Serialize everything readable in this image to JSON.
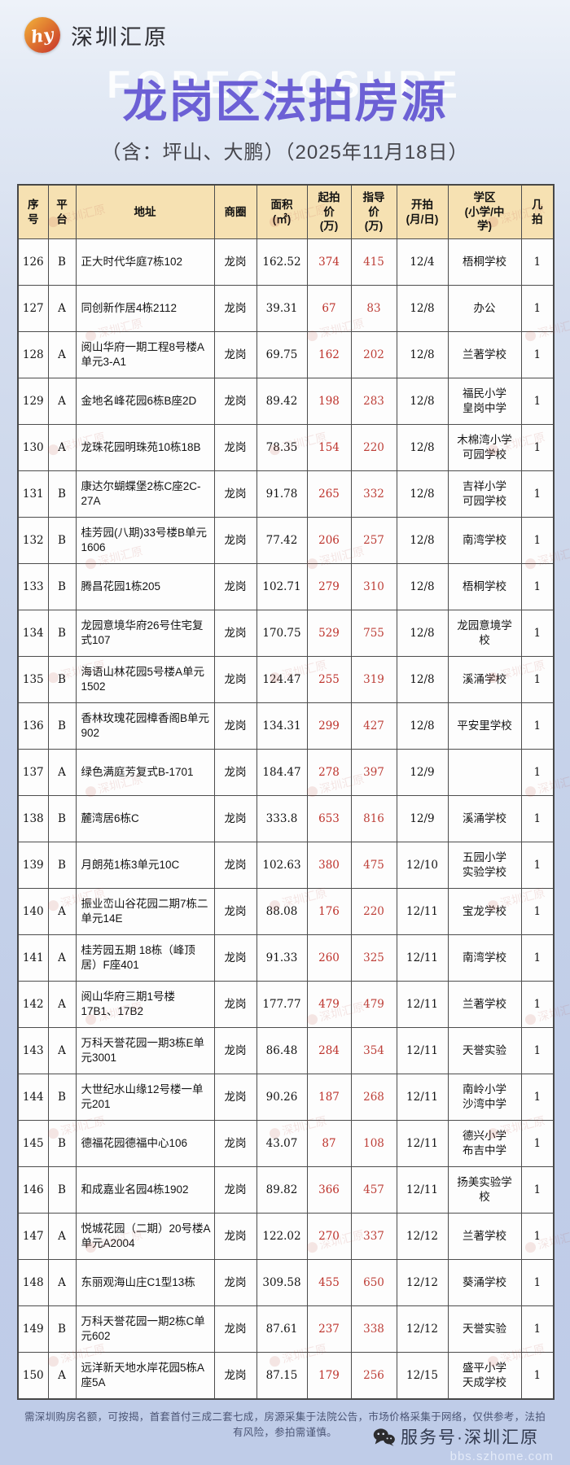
{
  "brand": {
    "logo_text": "hy",
    "name": "深圳汇原"
  },
  "header": {
    "watermark_en": "FORECLOSURE",
    "title": "龙岗区法拍房源",
    "subtitle": "（含：坪山、大鹏）（2025年11月18日）"
  },
  "colors": {
    "title_purple": "#6c60d5",
    "table_header_bg": "#f6e1b2",
    "start_price_red": "#bd322b",
    "guide_price_red": "#bd3f38",
    "page_bg_blue": "#c4d1e9"
  },
  "watermark": {
    "text": "深圳汇原"
  },
  "table": {
    "headers": [
      "序\n号",
      "平\n台",
      "地址",
      "商圈",
      "面积\n(㎡)",
      "起拍\n价\n(万)",
      "指导\n价\n(万)",
      "开拍\n(月/日)",
      "学区\n(小学/中\n学)",
      "几\n拍"
    ],
    "rows": [
      {
        "no": "126",
        "platform": "B",
        "address": "正大时代华庭7栋102",
        "district": "龙岗",
        "area": "162.52",
        "start_price": "374",
        "guide_price": "415",
        "date": "12/4",
        "school": "梧桐学校",
        "round": "1"
      },
      {
        "no": "127",
        "platform": "A",
        "address": "同创新作居4栋2112",
        "district": "龙岗",
        "area": "39.31",
        "start_price": "67",
        "guide_price": "83",
        "date": "12/8",
        "school": "办公",
        "round": "1"
      },
      {
        "no": "128",
        "platform": "A",
        "address": "阅山华府一期工程8号楼A单元3-A1",
        "district": "龙岗",
        "area": "69.75",
        "start_price": "162",
        "guide_price": "202",
        "date": "12/8",
        "school": "兰著学校",
        "round": "1"
      },
      {
        "no": "129",
        "platform": "A",
        "address": "金地名峰花园6栋B座2D",
        "district": "龙岗",
        "area": "89.42",
        "start_price": "198",
        "guide_price": "283",
        "date": "12/8",
        "school": "福民小学\n皇岗中学",
        "round": "1"
      },
      {
        "no": "130",
        "platform": "A",
        "address": "龙珠花园明珠苑10栋18B",
        "district": "龙岗",
        "area": "78.35",
        "start_price": "154",
        "guide_price": "220",
        "date": "12/8",
        "school": "木棉湾小学\n可园学校",
        "round": "1"
      },
      {
        "no": "131",
        "platform": "B",
        "address": "康达尔蝴蝶堡2栋C座2C-27A",
        "district": "龙岗",
        "area": "91.78",
        "start_price": "265",
        "guide_price": "332",
        "date": "12/8",
        "school": "吉祥小学\n可园学校",
        "round": "1"
      },
      {
        "no": "132",
        "platform": "B",
        "address": "桂芳园(八期)33号楼B单元1606",
        "district": "龙岗",
        "area": "77.42",
        "start_price": "206",
        "guide_price": "257",
        "date": "12/8",
        "school": "南湾学校",
        "round": "1"
      },
      {
        "no": "133",
        "platform": "B",
        "address": "腾昌花园1栋205",
        "district": "龙岗",
        "area": "102.71",
        "start_price": "279",
        "guide_price": "310",
        "date": "12/8",
        "school": "梧桐学校",
        "round": "1"
      },
      {
        "no": "134",
        "platform": "B",
        "address": "龙园意境华府26号住宅复式107",
        "district": "龙岗",
        "area": "170.75",
        "start_price": "529",
        "guide_price": "755",
        "date": "12/8",
        "school": "龙园意境学校",
        "round": "1"
      },
      {
        "no": "135",
        "platform": "B",
        "address": "海语山林花园5号楼A单元1502",
        "district": "龙岗",
        "area": "124.47",
        "start_price": "255",
        "guide_price": "319",
        "date": "12/8",
        "school": "溪涌学校",
        "round": "1"
      },
      {
        "no": "136",
        "platform": "B",
        "address": "香林玫瑰花园樟香阁B单元902",
        "district": "龙岗",
        "area": "134.31",
        "start_price": "299",
        "guide_price": "427",
        "date": "12/8",
        "school": "平安里学校",
        "round": "1"
      },
      {
        "no": "137",
        "platform": "A",
        "address": "绿色满庭芳复式B-1701",
        "district": "龙岗",
        "area": "184.47",
        "start_price": "278",
        "guide_price": "397",
        "date": "12/9",
        "school": "",
        "round": "1"
      },
      {
        "no": "138",
        "platform": "B",
        "address": "麓湾居6栋C",
        "district": "龙岗",
        "area": "333.8",
        "start_price": "653",
        "guide_price": "816",
        "date": "12/9",
        "school": "溪涌学校",
        "round": "1"
      },
      {
        "no": "139",
        "platform": "B",
        "address": "月朗苑1栋3单元10C",
        "district": "龙岗",
        "area": "102.63",
        "start_price": "380",
        "guide_price": "475",
        "date": "12/10",
        "school": "五园小学\n实验学校",
        "round": "1"
      },
      {
        "no": "140",
        "platform": "A",
        "address": "振业峦山谷花园二期7栋二单元14E",
        "district": "龙岗",
        "area": "88.08",
        "start_price": "176",
        "guide_price": "220",
        "date": "12/11",
        "school": "宝龙学校",
        "round": "1"
      },
      {
        "no": "141",
        "platform": "A",
        "address": "桂芳园五期 18栋（峰顶居）F座401",
        "district": "龙岗",
        "area": "91.33",
        "start_price": "260",
        "guide_price": "325",
        "date": "12/11",
        "school": "南湾学校",
        "round": "1"
      },
      {
        "no": "142",
        "platform": "A",
        "address": "阅山华府三期1号楼17B1、17B2",
        "district": "龙岗",
        "area": "177.77",
        "start_price": "479",
        "guide_price": "479",
        "date": "12/11",
        "school": "兰著学校",
        "round": "1"
      },
      {
        "no": "143",
        "platform": "A",
        "address": "万科天誉花园一期3栋E单元3001",
        "district": "龙岗",
        "area": "86.48",
        "start_price": "284",
        "guide_price": "354",
        "date": "12/11",
        "school": "天誉实验",
        "round": "1"
      },
      {
        "no": "144",
        "platform": "B",
        "address": "大世纪水山缘12号楼一单元201",
        "district": "龙岗",
        "area": "90.26",
        "start_price": "187",
        "guide_price": "268",
        "date": "12/11",
        "school": "南岭小学\n沙湾中学",
        "round": "1"
      },
      {
        "no": "145",
        "platform": "B",
        "address": "德福花园德福中心106",
        "district": "龙岗",
        "area": "43.07",
        "start_price": "87",
        "guide_price": "108",
        "date": "12/11",
        "school": "德兴小学\n布吉中学",
        "round": "1"
      },
      {
        "no": "146",
        "platform": "B",
        "address": "和成嘉业名园4栋1902",
        "district": "龙岗",
        "area": "89.82",
        "start_price": "366",
        "guide_price": "457",
        "date": "12/11",
        "school": "扬美实验学校",
        "round": "1"
      },
      {
        "no": "147",
        "platform": "A",
        "address": "悦城花园（二期）20号楼A单元A2004",
        "district": "龙岗",
        "area": "122.02",
        "start_price": "270",
        "guide_price": "337",
        "date": "12/12",
        "school": "兰著学校",
        "round": "1"
      },
      {
        "no": "148",
        "platform": "A",
        "address": "东丽观海山庄C1型13栋",
        "district": "龙岗",
        "area": "309.58",
        "start_price": "455",
        "guide_price": "650",
        "date": "12/12",
        "school": "葵涌学校",
        "round": "1"
      },
      {
        "no": "149",
        "platform": "B",
        "address": "万科天誉花园一期2栋C单元602",
        "district": "龙岗",
        "area": "87.61",
        "start_price": "237",
        "guide_price": "338",
        "date": "12/12",
        "school": "天誉实验",
        "round": "1"
      },
      {
        "no": "150",
        "platform": "A",
        "address": "远洋新天地水岸花园5栋A座5A",
        "district": "龙岗",
        "area": "87.15",
        "start_price": "179",
        "guide_price": "256",
        "date": "12/15",
        "school": "盛平小学\n天成学校",
        "round": "1"
      }
    ]
  },
  "footer": {
    "note": "需深圳购房名额，可按揭，首套首付三成二套七成，房源采集于法院公告，市场价格采集于网络，仅供参考，法拍有风险，参拍需谨慎。",
    "wechat_label": "服务号·深圳汇原",
    "site_watermark": "bbs.szhome.com"
  }
}
